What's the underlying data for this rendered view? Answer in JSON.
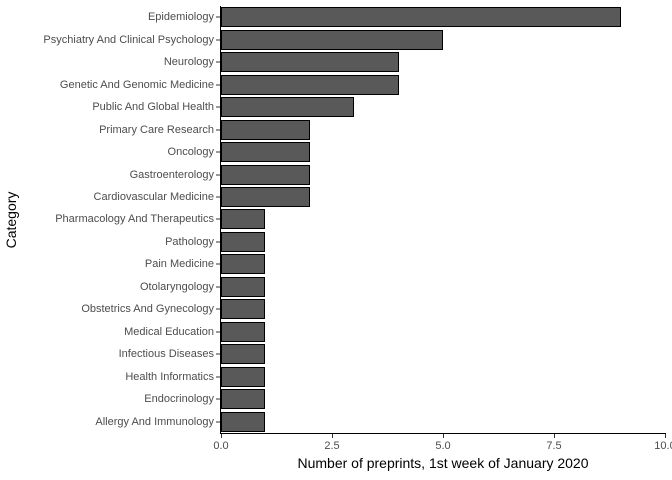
{
  "chart_data": {
    "type": "bar",
    "orientation": "horizontal",
    "title": "",
    "xlabel": "Number of preprints, 1st week of January 2020",
    "ylabel": "Category",
    "categories": [
      "Epidemiology",
      "Psychiatry And Clinical Psychology",
      "Neurology",
      "Genetic And Genomic Medicine",
      "Public And Global Health",
      "Primary Care Research",
      "Oncology",
      "Gastroenterology",
      "Cardiovascular Medicine",
      "Pharmacology And Therapeutics",
      "Pathology",
      "Pain Medicine",
      "Otolaryngology",
      "Obstetrics And Gynecology",
      "Medical Education",
      "Infectious Diseases",
      "Health Informatics",
      "Endocrinology",
      "Allergy And Immunology"
    ],
    "values": [
      9,
      5,
      4,
      4,
      3,
      2,
      2,
      2,
      2,
      1,
      1,
      1,
      1,
      1,
      1,
      1,
      1,
      1,
      1
    ],
    "xlim": [
      0,
      10
    ],
    "x_ticks": [
      "0.0",
      "2.5",
      "5.0",
      "7.5",
      "10.0"
    ],
    "grid": false,
    "legend": "none",
    "colors": {
      "bar_fill": "#595959",
      "bar_stroke": "#000000",
      "axis_line": "#000000",
      "tick_mark": "#333333",
      "tick_label": "#4d4d4d",
      "axis_title": "#000000",
      "background": "#ffffff"
    }
  }
}
